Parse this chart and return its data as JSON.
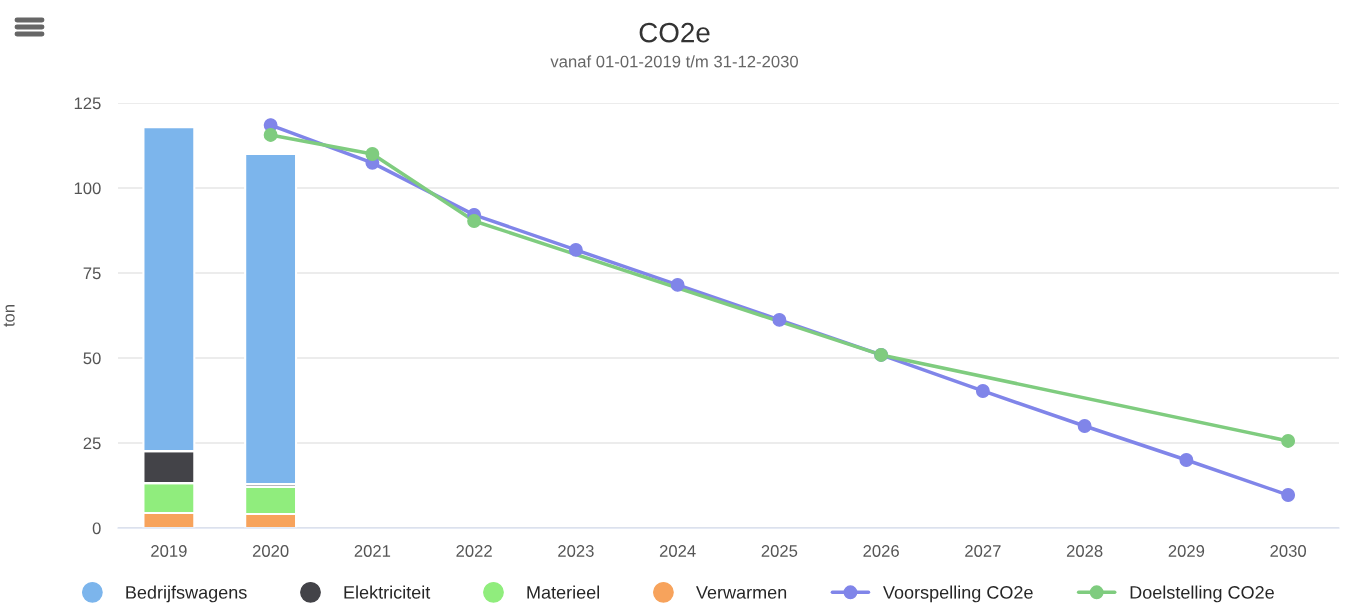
{
  "chart_data": {
    "type": "bar",
    "title": "CO2e",
    "subtitle": "vanaf 01-01-2019 t/m 31-12-2030",
    "ylabel": "ton",
    "stacked": true,
    "series": [
      {
        "name": "Verwarmen",
        "color": "#f7a35c",
        "x": [
          2019,
          2020
        ],
        "values": [
          4.4,
          4.1
        ]
      },
      {
        "name": "Materieel",
        "color": "#90ed7d",
        "x": [
          2019,
          2020
        ],
        "values": [
          8.8,
          8.0
        ]
      },
      {
        "name": "Elektriciteit",
        "color": "#434348",
        "x": [
          2019,
          2020
        ],
        "values": [
          9.4,
          0.8
        ]
      },
      {
        "name": "Bedrijfswagens",
        "color": "#7cb5ec",
        "x": [
          2019,
          2020
        ],
        "values": [
          95.3,
          97.1
        ]
      },
      {
        "name": "Voorspelling CO2e",
        "type": "line",
        "color": "#8085e9",
        "x": [
          2020,
          2021,
          2022,
          2023,
          2024,
          2025,
          2026,
          2027,
          2028,
          2029,
          2030
        ],
        "values": [
          118.5,
          107.4,
          92.1,
          81.8,
          71.5,
          61.2,
          50.9,
          40.3,
          30.0,
          20.0,
          9.7
        ]
      },
      {
        "name": "Doelstelling CO2e",
        "type": "line",
        "color": "#7fcc7f",
        "x": [
          2020,
          2021,
          2022,
          2026,
          2030
        ],
        "values": [
          115.6,
          110.0,
          90.3,
          50.9,
          25.6
        ]
      }
    ],
    "xlim": [
      2018.5,
      2030.5
    ],
    "xticks": [
      2019,
      2020,
      2021,
      2022,
      2023,
      2024,
      2025,
      2026,
      2027,
      2028,
      2029,
      2030
    ],
    "ylim": [
      0,
      125
    ],
    "yticks": [
      0,
      25,
      50,
      75,
      100,
      125
    ],
    "grid": "y",
    "legend": "bottom",
    "marker": "circle",
    "line_style": "solid"
  }
}
